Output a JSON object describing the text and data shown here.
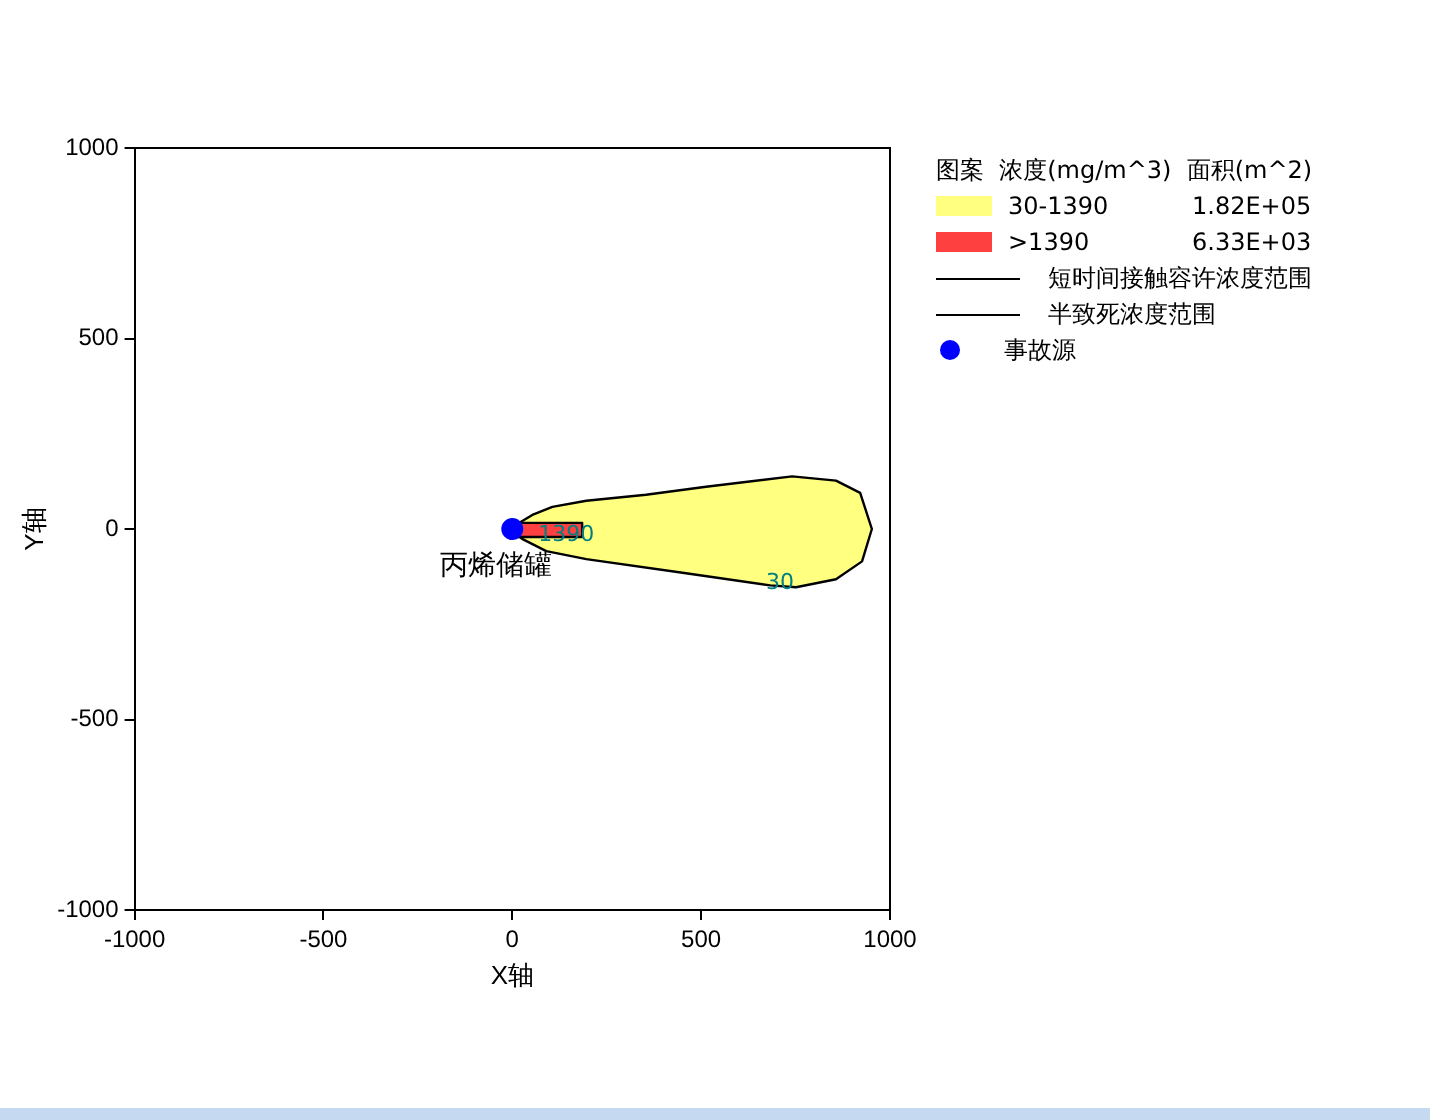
{
  "chart_data": {
    "type": "area",
    "xlabel": "X轴",
    "ylabel": "Y轴",
    "legend_title": "图案  浓度(mg/m^3)  面积(m^2)",
    "xlim": [
      -1000,
      1000
    ],
    "ylim": [
      -1000,
      1000
    ],
    "xticks": [
      -1000,
      -500,
      0,
      500,
      1000
    ],
    "yticks": [
      -1000,
      -500,
      0,
      500,
      1000
    ],
    "grid": false,
    "legend": "right",
    "series": [
      {
        "name": "30-1390",
        "color": "#ffff80",
        "x": [
          0,
          53,
          106,
          196,
          354,
          513,
          741,
          857,
          921,
          952,
          926,
          857,
          751,
          683,
          460,
          196,
          90,
          26,
          0
        ],
        "values": [
          5,
          37,
          58,
          74,
          90,
          111,
          138,
          127,
          95,
          0,
          -85,
          -132,
          -153,
          -148,
          -116,
          -79,
          -58,
          -26,
          -5
        ]
      },
      {
        "name": ">1390",
        "color": "#ff4040",
        "x": [
          0,
          185,
          185,
          0
        ],
        "values": [
          16,
          16,
          -21,
          -21
        ]
      },
      {
        "name": "事故源",
        "type": "scatter",
        "color": "#0000ff",
        "x": [
          0
        ],
        "values": [
          0
        ]
      }
    ],
    "annotations": [
      "1.82E+05",
      "6.33E+03",
      "短时间接触容许浓度范围",
      "半致死浓度范围",
      {
        "text": "1390",
        "x": 143,
        "y": -16
      },
      {
        "text": "30",
        "x": 709,
        "y": -143
      },
      "丙烯储罐"
    ]
  }
}
